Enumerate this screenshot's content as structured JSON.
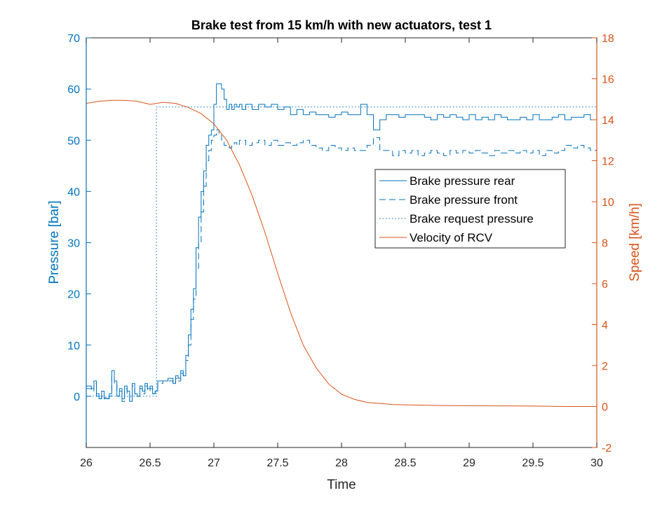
{
  "chart_data": {
    "type": "line",
    "title": "Brake test from 15 km/h with new actuators, test 1",
    "xlabel": "Time",
    "ylabel_left": "Pressure [bar]",
    "ylabel_right": "Speed [km/h]",
    "xlim": [
      26,
      30
    ],
    "ylim_left": [
      -10,
      70
    ],
    "ylim_right": [
      -2,
      18
    ],
    "x_ticks": [
      "26",
      "26.5",
      "27",
      "27.5",
      "28",
      "28.5",
      "29",
      "29.5",
      "30"
    ],
    "y_left_ticks": [
      "0",
      "10",
      "20",
      "30",
      "40",
      "50",
      "60",
      "70"
    ],
    "y_right_ticks": [
      "-2",
      "0",
      "2",
      "4",
      "6",
      "8",
      "10",
      "12",
      "14",
      "16",
      "18"
    ],
    "grid": false,
    "legend_placement": "center-right",
    "colors": {
      "left_axis": "#0072BD",
      "right_axis": "#D95319",
      "pressure": "#0072BD",
      "velocity": "#D95319"
    },
    "series": [
      {
        "name": "Brake pressure rear",
        "axis": "left",
        "style": "solid",
        "x": [
          26.0,
          26.04,
          26.06,
          26.08,
          26.1,
          26.12,
          26.14,
          26.16,
          26.18,
          26.2,
          26.22,
          26.24,
          26.26,
          26.28,
          26.3,
          26.32,
          26.34,
          26.36,
          26.38,
          26.4,
          26.42,
          26.44,
          26.46,
          26.48,
          26.5,
          26.52,
          26.54,
          26.56,
          26.6,
          26.64,
          26.68,
          26.7,
          26.72,
          26.74,
          26.76,
          26.78,
          26.8,
          26.82,
          26.84,
          26.86,
          26.88,
          26.9,
          26.92,
          26.94,
          26.96,
          26.98,
          27.0,
          27.02,
          27.04,
          27.06,
          27.08,
          27.1,
          27.12,
          27.14,
          27.16,
          27.18,
          27.2,
          27.22,
          27.25,
          27.3,
          27.35,
          27.4,
          27.45,
          27.5,
          27.55,
          27.6,
          27.65,
          27.7,
          27.75,
          27.8,
          27.85,
          27.9,
          27.95,
          28.0,
          28.05,
          28.1,
          28.15,
          28.2,
          28.25,
          28.3,
          28.35,
          28.4,
          28.45,
          28.5,
          28.55,
          28.6,
          28.65,
          28.7,
          28.75,
          28.8,
          28.85,
          28.9,
          28.95,
          29.0,
          29.05,
          29.1,
          29.15,
          29.2,
          29.25,
          29.3,
          29.35,
          29.4,
          29.45,
          29.5,
          29.55,
          29.6,
          29.65,
          29.7,
          29.75,
          29.8,
          29.85,
          29.9,
          29.95,
          30.0
        ],
        "y": [
          2,
          1.5,
          3,
          0.5,
          -0.5,
          1,
          -0.3,
          -0.5,
          0.5,
          5,
          3,
          0,
          1.5,
          -0.5,
          2,
          1,
          -1,
          2.5,
          0.5,
          0,
          2,
          1,
          2.5,
          1.5,
          2,
          0.5,
          1,
          3,
          3,
          3.5,
          2.5,
          4,
          3.5,
          5,
          4,
          8,
          12,
          17,
          21,
          29,
          35,
          40,
          44,
          49,
          51,
          52,
          57,
          61,
          61,
          60,
          58,
          56,
          57,
          56,
          57,
          56.5,
          57,
          56,
          57,
          56,
          57,
          56.5,
          57,
          56,
          56.5,
          55,
          56,
          55,
          55.5,
          55,
          55,
          54.5,
          55,
          55.5,
          55,
          55,
          57,
          55,
          52,
          54,
          55,
          55,
          54.5,
          55,
          55,
          55,
          54.5,
          54,
          55,
          54.5,
          55,
          54.5,
          54,
          55,
          54,
          54.5,
          54,
          55,
          54.5,
          54,
          54,
          54.5,
          54,
          55,
          54,
          54,
          54.5,
          55,
          54,
          54.5,
          54.5,
          55,
          54,
          54
        ]
      },
      {
        "name": "Brake pressure front",
        "axis": "left",
        "style": "dashed",
        "x": [
          26.0,
          26.04,
          26.06,
          26.08,
          26.1,
          26.12,
          26.14,
          26.16,
          26.18,
          26.2,
          26.22,
          26.24,
          26.26,
          26.28,
          26.3,
          26.32,
          26.34,
          26.36,
          26.38,
          26.4,
          26.42,
          26.44,
          26.46,
          26.48,
          26.5,
          26.52,
          26.54,
          26.56,
          26.6,
          26.64,
          26.68,
          26.7,
          26.72,
          26.74,
          26.76,
          26.78,
          26.8,
          26.82,
          26.84,
          26.86,
          26.88,
          26.9,
          26.92,
          26.94,
          26.96,
          26.98,
          27.0,
          27.02,
          27.04,
          27.06,
          27.08,
          27.1,
          27.12,
          27.14,
          27.16,
          27.18,
          27.2,
          27.25,
          27.3,
          27.35,
          27.4,
          27.45,
          27.5,
          27.55,
          27.6,
          27.65,
          27.7,
          27.75,
          27.8,
          27.85,
          27.9,
          27.95,
          28.0,
          28.05,
          28.1,
          28.15,
          28.2,
          28.25,
          28.3,
          28.35,
          28.4,
          28.45,
          28.5,
          28.55,
          28.6,
          28.65,
          28.7,
          28.75,
          28.8,
          28.85,
          28.9,
          28.95,
          29.0,
          29.05,
          29.1,
          29.15,
          29.2,
          29.25,
          29.3,
          29.35,
          29.4,
          29.45,
          29.5,
          29.55,
          29.6,
          29.65,
          29.7,
          29.75,
          29.8,
          29.85,
          29.9,
          29.95,
          30.0
        ],
        "y": [
          1.5,
          1,
          2.5,
          0,
          -0.5,
          0.5,
          -0.5,
          -0.3,
          0,
          4,
          2.5,
          0,
          1,
          -1,
          1.5,
          0.5,
          -1,
          2,
          0,
          0,
          1.5,
          0.5,
          2,
          1,
          1.5,
          0.5,
          1,
          2.5,
          3,
          3,
          2.5,
          3.5,
          3,
          4.5,
          4,
          7,
          10,
          15,
          19,
          25,
          30,
          36,
          41,
          46,
          48,
          50,
          51,
          52,
          51,
          50,
          49,
          49,
          48.5,
          49,
          49.5,
          49,
          50,
          49,
          49.5,
          50,
          49,
          50,
          49,
          49.5,
          49,
          49.5,
          50,
          49,
          48.5,
          48,
          49,
          48.5,
          48,
          48.5,
          48,
          48,
          49,
          50.5,
          48,
          48,
          47,
          48,
          47.5,
          48,
          47,
          47.5,
          48,
          47.5,
          47,
          48,
          47.5,
          48,
          47.5,
          48,
          47.5,
          47,
          48,
          47.5,
          48,
          47.5,
          48,
          47.5,
          48,
          47,
          48,
          47.5,
          48,
          49,
          48.5,
          49,
          48.5,
          48,
          48
        ]
      },
      {
        "name": "Brake request pressure",
        "axis": "left",
        "style": "dotted",
        "x": [
          26.0,
          26.55,
          26.55,
          30.0
        ],
        "y": [
          0,
          0,
          56.5,
          56.5
        ]
      },
      {
        "name": "Velocity of RCV",
        "axis": "right",
        "style": "solid",
        "x": [
          26.0,
          26.1,
          26.2,
          26.3,
          26.4,
          26.5,
          26.6,
          26.7,
          26.8,
          26.9,
          27.0,
          27.1,
          27.2,
          27.3,
          27.4,
          27.5,
          27.6,
          27.7,
          27.8,
          27.9,
          28.0,
          28.1,
          28.2,
          28.3,
          28.4,
          28.5,
          28.75,
          29.0,
          29.25,
          29.5,
          29.75,
          30.0
        ],
        "y": [
          14.8,
          14.9,
          14.95,
          14.95,
          14.9,
          14.75,
          14.85,
          14.8,
          14.6,
          14.3,
          13.8,
          13.0,
          11.8,
          10.3,
          8.5,
          6.5,
          4.6,
          3.0,
          1.9,
          1.1,
          0.6,
          0.35,
          0.2,
          0.15,
          0.1,
          0.08,
          0.05,
          0.04,
          0.03,
          0.02,
          0.0,
          0.0
        ]
      }
    ]
  }
}
